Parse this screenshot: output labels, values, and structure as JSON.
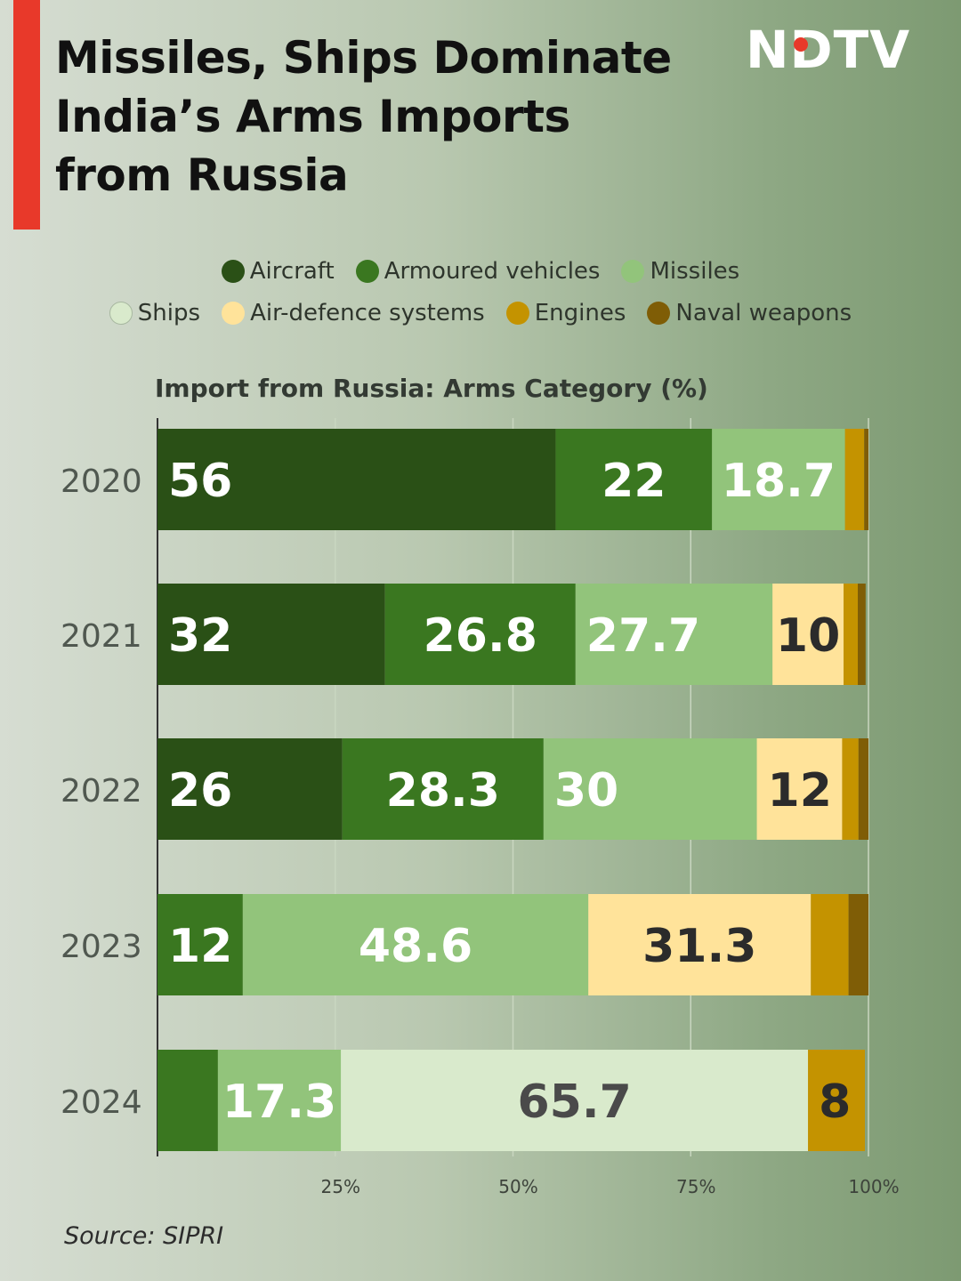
{
  "header": {
    "title_lines": [
      "Missiles, Ships Dominate",
      "India’s Arms Imports",
      "from Russia"
    ],
    "logo_text": "NDTV",
    "accent_color": "#e8392a"
  },
  "legend": [
    {
      "label": "Aircraft",
      "color": "#2a5016"
    },
    {
      "label": "Armoured vehicles",
      "color": "#3a7720"
    },
    {
      "label": "Missiles",
      "color": "#92c47b"
    },
    {
      "label": "Ships",
      "color": "#d9eacc"
    },
    {
      "label": "Air-defence systems",
      "color": "#ffe39a"
    },
    {
      "label": "Engines",
      "color": "#c49300"
    },
    {
      "label": "Naval weapons",
      "color": "#7f5d06"
    }
  ],
  "chart_data": {
    "type": "bar",
    "orientation": "horizontal",
    "stacked": true,
    "title": "Import from Russia: Arms Category (%)",
    "categories": [
      "2020",
      "2021",
      "2022",
      "2023",
      "2024"
    ],
    "xlim": [
      0,
      100
    ],
    "x_ticks": [
      "25%",
      "50%",
      "75%",
      "100%"
    ],
    "x_tick_values": [
      25,
      50,
      75,
      100
    ],
    "grid": true,
    "series": [
      {
        "name": "Aircraft",
        "color": "#2a5016",
        "label_color": "#ffffff",
        "values": [
          56,
          32,
          26,
          0,
          0
        ],
        "labels": [
          "56",
          "32",
          "26",
          "",
          ""
        ]
      },
      {
        "name": "Armoured vehicles",
        "color": "#3a7720",
        "label_color": "#ffffff",
        "values": [
          22,
          26.8,
          28.3,
          12,
          8.5
        ],
        "labels": [
          "22",
          "26.8",
          "28.3",
          "12",
          ""
        ]
      },
      {
        "name": "Missiles",
        "color": "#92c47b",
        "label_color": "#ffffff",
        "values": [
          18.7,
          27.7,
          30,
          48.6,
          17.3
        ],
        "labels": [
          "18.7",
          "27.7",
          "30",
          "48.6",
          "17.3"
        ]
      },
      {
        "name": "Ships",
        "color": "#d9eacc",
        "label_color": "#4a4a4a",
        "values": [
          0,
          0,
          0,
          0,
          65.7
        ],
        "labels": [
          "",
          "",
          "",
          "",
          "65.7"
        ]
      },
      {
        "name": "Air-defence systems",
        "color": "#ffe39a",
        "label_color": "#2b2b2b",
        "values": [
          0,
          10,
          12,
          31.3,
          0
        ],
        "labels": [
          "",
          "10",
          "12",
          "31.3",
          ""
        ]
      },
      {
        "name": "Engines",
        "color": "#c49300",
        "label_color": "#2b2b2b",
        "values": [
          2.7,
          2,
          2.3,
          5.3,
          8
        ],
        "labels": [
          "",
          "",
          "",
          "",
          "8"
        ]
      },
      {
        "name": "Naval weapons",
        "color": "#7f5d06",
        "label_color": "#ffffff",
        "values": [
          0.6,
          1.1,
          1.4,
          2.8,
          0
        ],
        "labels": [
          "",
          "",
          "",
          "",
          ""
        ]
      }
    ]
  },
  "source": "Source: SIPRI"
}
